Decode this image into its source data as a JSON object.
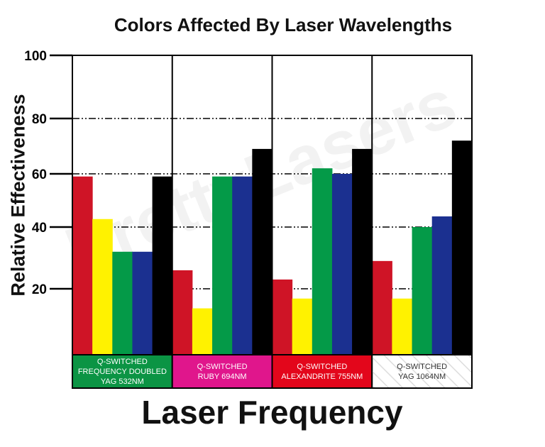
{
  "chart_data": {
    "type": "bar",
    "title": "Colors Affected By Laser Wavelengths",
    "xlabel": "Laser Frequency",
    "ylabel": "Relative Effectiveness",
    "yticks": [
      20,
      40,
      60,
      80,
      100
    ],
    "ylim": [
      0,
      100
    ],
    "grid": true,
    "categories": [
      {
        "lines": [
          "Q-SWITCHED",
          "FREQUENCY DOUBLED",
          "YAG 532NM"
        ],
        "color": "#0b9444",
        "text_color": "#ffffff",
        "hatched": false
      },
      {
        "lines": [
          "Q-SWITCHED",
          "RUBY 694NM"
        ],
        "color": "#e0168c",
        "text_color": "#ffffff",
        "hatched": false
      },
      {
        "lines": [
          "Q-SWITCHED",
          "ALEXANDRITE 755NM"
        ],
        "color": "#e3061b",
        "text_color": "#ffffff",
        "hatched": false
      },
      {
        "lines": [
          "Q-SWITCHED",
          "YAG 1064NM"
        ],
        "color": "#ffffff",
        "text_color": "#333333",
        "hatched": true
      }
    ],
    "series": [
      {
        "color": "#cf1426",
        "values": [
          59,
          26,
          23,
          29
        ]
      },
      {
        "color": "#fff200",
        "values": [
          43,
          14,
          17,
          17
        ]
      },
      {
        "color": "#049a48",
        "values": [
          32,
          59,
          62,
          40
        ]
      },
      {
        "color": "#1b3090",
        "values": [
          32,
          59,
          60,
          44
        ]
      },
      {
        "color": "#000000",
        "values": [
          59,
          69,
          69,
          72
        ]
      }
    ],
    "watermark": "PrettyLasers"
  }
}
